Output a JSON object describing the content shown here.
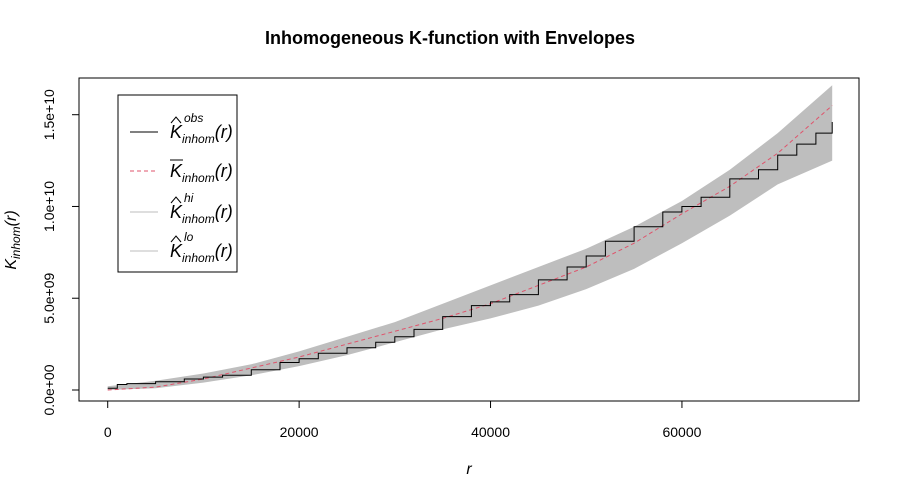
{
  "chart_data": {
    "type": "line",
    "title": "Inhomogeneous K-function with Envelopes",
    "xlabel": "r",
    "ylabel": "K_inhom(r)",
    "xlim": [
      -3000,
      78500
    ],
    "ylim": [
      -600000000,
      17000000000
    ],
    "x_ticks": [
      0,
      20000,
      40000,
      60000
    ],
    "x_tick_labels": [
      "0",
      "20000",
      "40000",
      "60000"
    ],
    "y_ticks": [
      0,
      5000000000,
      10000000000,
      15000000000
    ],
    "y_tick_labels": [
      "0.0e+00",
      "5.0e+09",
      "1.0e+10",
      "1.5e+10"
    ],
    "grid": false,
    "legend_position": "top-left",
    "legend": [
      {
        "base": "K",
        "accent": "hat",
        "sub": "inhom",
        "sup": "obs",
        "style": "solid",
        "color": "#000000"
      },
      {
        "base": "K",
        "accent": "bar",
        "sub": "inhom",
        "sup": "",
        "style": "dashed",
        "color": "#DF536B"
      },
      {
        "base": "K",
        "accent": "hat",
        "sub": "inhom",
        "sup": "hi",
        "style": "solid",
        "color": "#BEBEBE"
      },
      {
        "base": "K",
        "accent": "hat",
        "sub": "inhom",
        "sup": "lo",
        "style": "solid",
        "color": "#BEBEBE"
      }
    ],
    "series": [
      {
        "name": "obs",
        "color": "#000000",
        "x": [
          0,
          1000,
          2000,
          5000,
          8000,
          10000,
          12000,
          15000,
          18000,
          20000,
          22000,
          25000,
          28000,
          30000,
          32000,
          35000,
          38000,
          40000,
          42000,
          45000,
          48000,
          50000,
          52000,
          55000,
          58000,
          60000,
          62000,
          65000,
          68000,
          70000,
          72000,
          74000,
          75700
        ],
        "y": [
          100000000,
          300000000,
          350000000,
          450000000,
          600000000,
          700000000,
          800000000,
          1100000000,
          1500000000,
          1700000000,
          2000000000,
          2300000000,
          2600000000,
          2900000000,
          3300000000,
          4000000000,
          4600000000,
          4800000000,
          5200000000,
          6000000000,
          6700000000,
          7300000000,
          8100000000,
          8900000000,
          9700000000,
          10000000000,
          10500000000,
          11500000000,
          12000000000,
          12800000000,
          13400000000,
          14000000000,
          14600000000
        ]
      },
      {
        "name": "theo",
        "color": "#DF536B",
        "x": [
          0,
          5000,
          10000,
          15000,
          20000,
          25000,
          30000,
          35000,
          40000,
          45000,
          50000,
          55000,
          60000,
          65000,
          70000,
          75700
        ],
        "y": [
          0,
          160000000,
          600000000,
          1200000000,
          1800000000,
          2500000000,
          3200000000,
          3900000000,
          4700000000,
          5700000000,
          6700000000,
          8000000000,
          9600000000,
          11100000000,
          12900000000,
          15500000000
        ]
      },
      {
        "name": "hi",
        "color": "#BEBEBE",
        "x": [
          0,
          5000,
          10000,
          15000,
          20000,
          25000,
          30000,
          35000,
          40000,
          45000,
          50000,
          55000,
          60000,
          65000,
          70000,
          75700
        ],
        "y": [
          200000000,
          500000000,
          900000000,
          1400000000,
          2100000000,
          2900000000,
          3700000000,
          4700000000,
          5700000000,
          6700000000,
          7700000000,
          8900000000,
          10300000000,
          12000000000,
          14000000000,
          16600000000
        ]
      },
      {
        "name": "lo",
        "color": "#BEBEBE",
        "x": [
          0,
          5000,
          10000,
          15000,
          20000,
          25000,
          30000,
          35000,
          40000,
          45000,
          50000,
          55000,
          60000,
          65000,
          70000,
          75700
        ],
        "y": [
          0,
          100000000,
          400000000,
          800000000,
          1300000000,
          1900000000,
          2600000000,
          3300000000,
          3900000000,
          4600000000,
          5500000000,
          6600000000,
          8000000000,
          9500000000,
          11200000000,
          12500000000
        ]
      }
    ]
  }
}
